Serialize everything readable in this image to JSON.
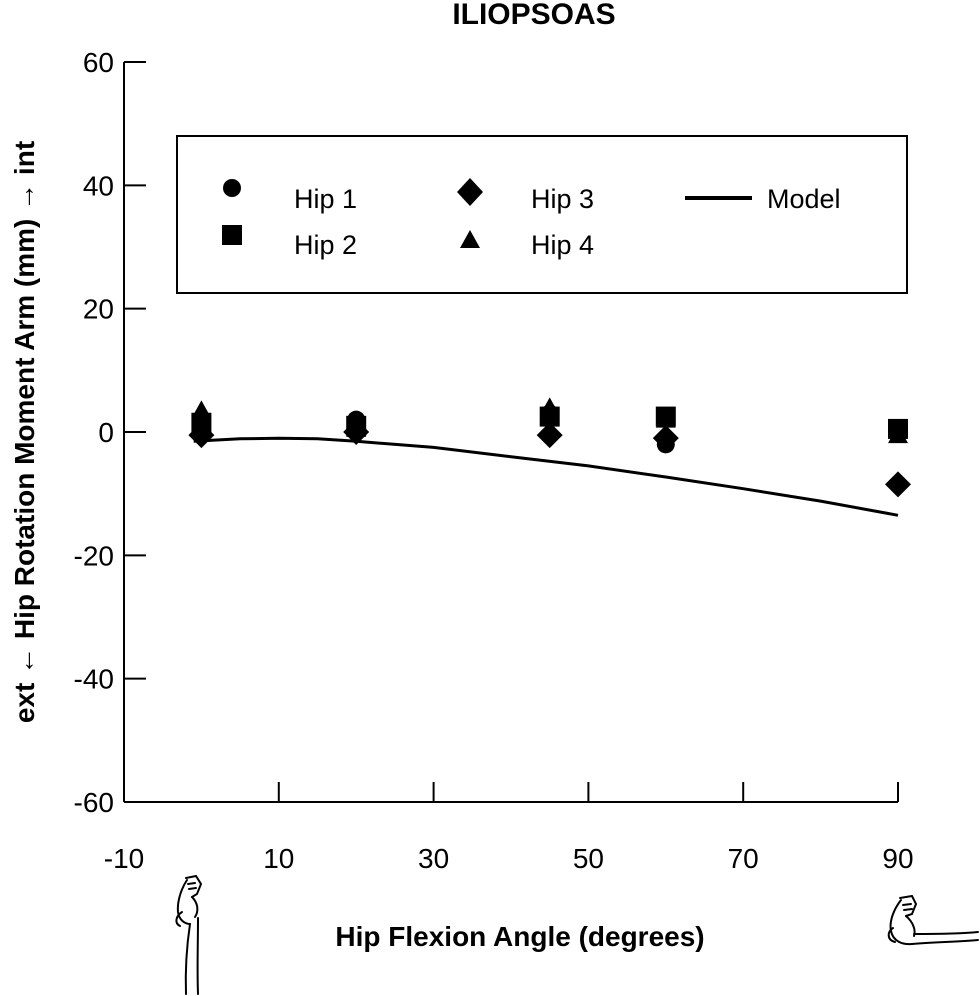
{
  "chart_data": {
    "type": "scatter",
    "title": "ILIOPSOAS",
    "xlabel": "Hip Flexion Angle (degrees)",
    "ylabel": "ext ← Hip Rotation Moment Arm (mm) → int",
    "xlim": [
      -10,
      90
    ],
    "ylim": [
      -60,
      60
    ],
    "xticks": [
      -10,
      10,
      30,
      50,
      70,
      90
    ],
    "yticks": [
      60,
      40,
      20,
      0,
      -20,
      -40,
      -60
    ],
    "grid": false,
    "legend_position": "top",
    "series": [
      {
        "name": "Hip 1",
        "marker": "circle",
        "x": [
          0,
          20,
          45,
          60,
          90
        ],
        "y": [
          1,
          2,
          3,
          -2,
          -8.5
        ]
      },
      {
        "name": "Hip 2",
        "marker": "square",
        "x": [
          0,
          20,
          45,
          60,
          90
        ],
        "y": [
          1.5,
          1,
          2.5,
          2.5,
          0.5
        ]
      },
      {
        "name": "Hip 3",
        "marker": "diamond",
        "x": [
          0,
          20,
          45,
          60,
          90
        ],
        "y": [
          -0.5,
          0,
          -0.5,
          -1,
          -8.5
        ]
      },
      {
        "name": "Hip 4",
        "marker": "triangle",
        "x": [
          0,
          20,
          45,
          60,
          90
        ],
        "y": [
          3.5,
          0.5,
          4,
          2,
          -0.5
        ]
      },
      {
        "name": "Model",
        "marker": "line",
        "x": [
          -1,
          5,
          10,
          15,
          20,
          30,
          40,
          50,
          60,
          70,
          80,
          90
        ],
        "y": [
          -1.5,
          -1.1,
          -1.0,
          -1.1,
          -1.5,
          -2.5,
          -4.0,
          -5.5,
          -7.3,
          -9.2,
          -11.2,
          -13.5
        ]
      }
    ]
  }
}
